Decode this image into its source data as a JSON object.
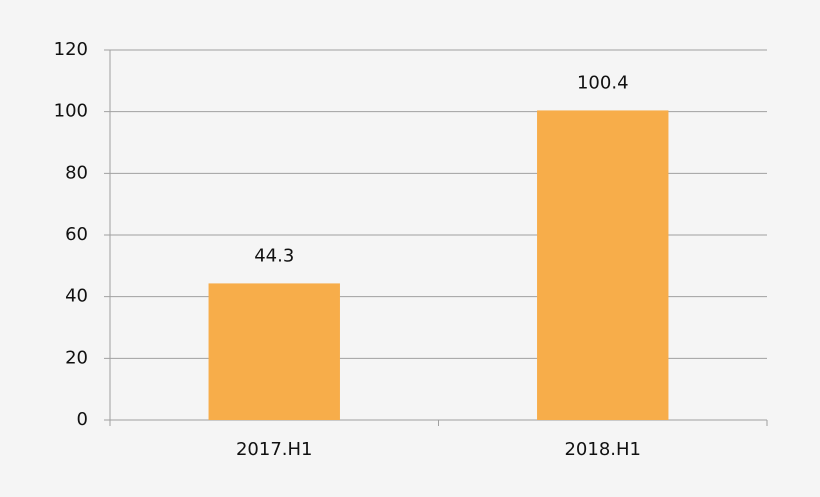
{
  "chart_data": {
    "type": "bar",
    "categories": [
      "2017.H1",
      "2018.H1"
    ],
    "values": [
      44.3,
      100.4
    ],
    "color": "#f7ad4a",
    "ylim": [
      0,
      120
    ],
    "yticks": [
      0,
      20,
      40,
      60,
      80,
      100,
      120
    ],
    "grid": true
  }
}
